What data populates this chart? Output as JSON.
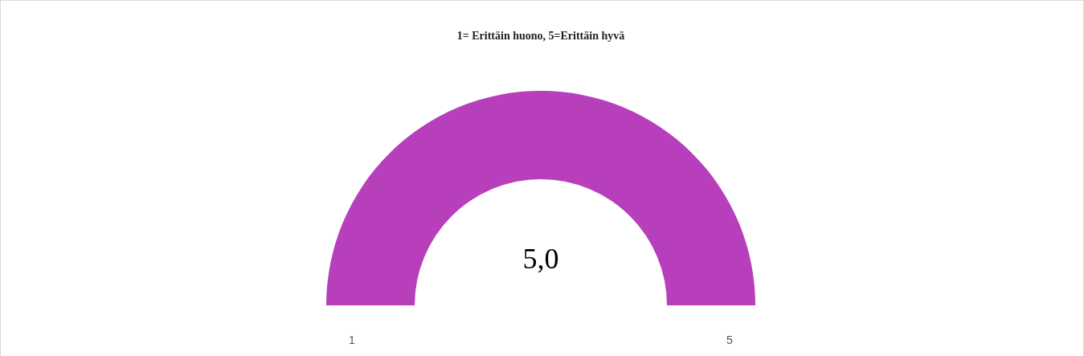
{
  "chart_data": {
    "type": "pie",
    "title": "1= Erittäin huono, 5=Erittäin hyvä",
    "categories": [
      null,
      null
    ],
    "values": [
      100,
      0
    ],
    "colors": [
      "#b73fbb",
      "#e6e6e6"
    ],
    "annotations": [
      "5,0",
      "1",
      "5"
    ]
  }
}
